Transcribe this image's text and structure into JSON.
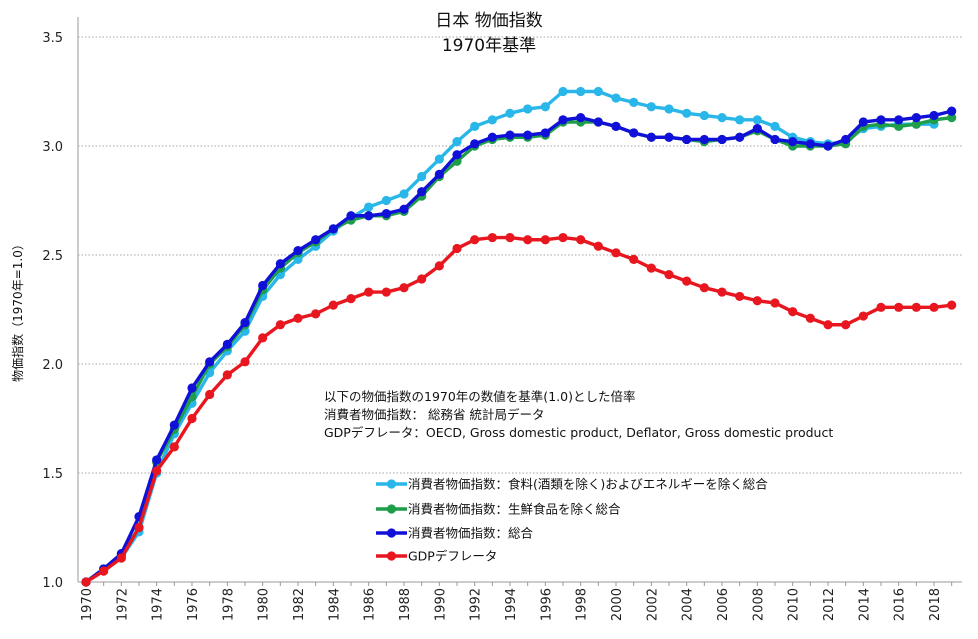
{
  "chart_data": {
    "type": "line",
    "title": "日本 物価指数",
    "subtitle": "1970年基準",
    "ylabel": "物価指数（1970年=1.0）",
    "xlabel": "",
    "ylim": [
      1.0,
      3.5
    ],
    "y_ticks": [
      "1.0",
      "1.5",
      "2.0",
      "2.5",
      "3.0",
      "3.5"
    ],
    "x": [
      1970,
      1971,
      1972,
      1973,
      1974,
      1975,
      1976,
      1977,
      1978,
      1979,
      1980,
      1981,
      1982,
      1983,
      1984,
      1985,
      1986,
      1987,
      1988,
      1989,
      1990,
      1991,
      1992,
      1993,
      1994,
      1995,
      1996,
      1997,
      1998,
      1999,
      2000,
      2001,
      2002,
      2003,
      2004,
      2005,
      2006,
      2007,
      2008,
      2009,
      2010,
      2011,
      2012,
      2013,
      2014,
      2015,
      2016,
      2017,
      2018,
      2019
    ],
    "x_ticks": [
      "1970",
      "1972",
      "1974",
      "1976",
      "1978",
      "1980",
      "1982",
      "1984",
      "1986",
      "1988",
      "1990",
      "1992",
      "1994",
      "1996",
      "1998",
      "2000",
      "2002",
      "2004",
      "2006",
      "2008",
      "2010",
      "2012",
      "2014",
      "2016",
      "2018"
    ],
    "grid": true,
    "notes": [
      "以下の物価指数の1970年の数値を基準(1.0)とした倍率",
      "消費者物価指数： 総務省 統計局データ",
      "GDPデフレータ：OECD, Gross domestic product, Deflator, Gross domestic product"
    ],
    "legend_position": "center-left",
    "series": [
      {
        "name": "消費者物価指数：食料(酒類を除く)およびエネルギーを除く総合",
        "color": "#29b6e8",
        "values": [
          1.0,
          1.06,
          1.11,
          1.23,
          1.5,
          1.68,
          1.82,
          1.96,
          2.06,
          2.15,
          2.31,
          2.41,
          2.48,
          2.54,
          2.61,
          2.67,
          2.72,
          2.75,
          2.78,
          2.86,
          2.94,
          3.02,
          3.09,
          3.12,
          3.15,
          3.17,
          3.18,
          3.25,
          3.25,
          3.25,
          3.22,
          3.2,
          3.18,
          3.17,
          3.15,
          3.14,
          3.13,
          3.12,
          3.12,
          3.09,
          3.04,
          3.02,
          3.01,
          3.02,
          3.08,
          3.09,
          3.1,
          3.1,
          3.1,
          null
        ]
      },
      {
        "name": "消費者物価指数：生鮮食品を除く総合",
        "color": "#1e9e4a",
        "values": [
          1.0,
          1.06,
          1.12,
          1.25,
          1.55,
          1.7,
          1.85,
          2.0,
          2.08,
          2.18,
          2.34,
          2.44,
          2.51,
          2.56,
          2.62,
          2.66,
          2.68,
          2.68,
          2.7,
          2.77,
          2.86,
          2.93,
          3.0,
          3.03,
          3.04,
          3.04,
          3.05,
          3.11,
          3.11,
          3.11,
          3.09,
          3.06,
          3.04,
          3.04,
          3.03,
          3.02,
          3.03,
          3.04,
          3.07,
          3.03,
          3.0,
          3.0,
          3.0,
          3.01,
          3.09,
          3.1,
          3.09,
          3.1,
          3.12,
          3.13
        ]
      },
      {
        "name": "消費者物価指数：総合",
        "color": "#1010d8",
        "values": [
          1.0,
          1.06,
          1.13,
          1.3,
          1.56,
          1.72,
          1.89,
          2.01,
          2.09,
          2.19,
          2.36,
          2.46,
          2.52,
          2.57,
          2.62,
          2.68,
          2.68,
          2.69,
          2.71,
          2.79,
          2.87,
          2.96,
          3.01,
          3.04,
          3.05,
          3.05,
          3.06,
          3.12,
          3.13,
          3.11,
          3.09,
          3.06,
          3.04,
          3.04,
          3.03,
          3.03,
          3.03,
          3.04,
          3.08,
          3.03,
          3.02,
          3.01,
          3.0,
          3.03,
          3.11,
          3.12,
          3.12,
          3.13,
          3.14,
          3.16
        ]
      },
      {
        "name": "GDPデフレータ",
        "color": "#e8161e",
        "values": [
          1.0,
          1.05,
          1.11,
          1.25,
          1.51,
          1.62,
          1.75,
          1.86,
          1.95,
          2.01,
          2.12,
          2.18,
          2.21,
          2.23,
          2.27,
          2.3,
          2.33,
          2.33,
          2.35,
          2.39,
          2.45,
          2.53,
          2.57,
          2.58,
          2.58,
          2.57,
          2.57,
          2.58,
          2.57,
          2.54,
          2.51,
          2.48,
          2.44,
          2.41,
          2.38,
          2.35,
          2.33,
          2.31,
          2.29,
          2.28,
          2.24,
          2.21,
          2.18,
          2.18,
          2.22,
          2.26,
          2.26,
          2.26,
          2.26,
          2.27
        ]
      }
    ]
  }
}
